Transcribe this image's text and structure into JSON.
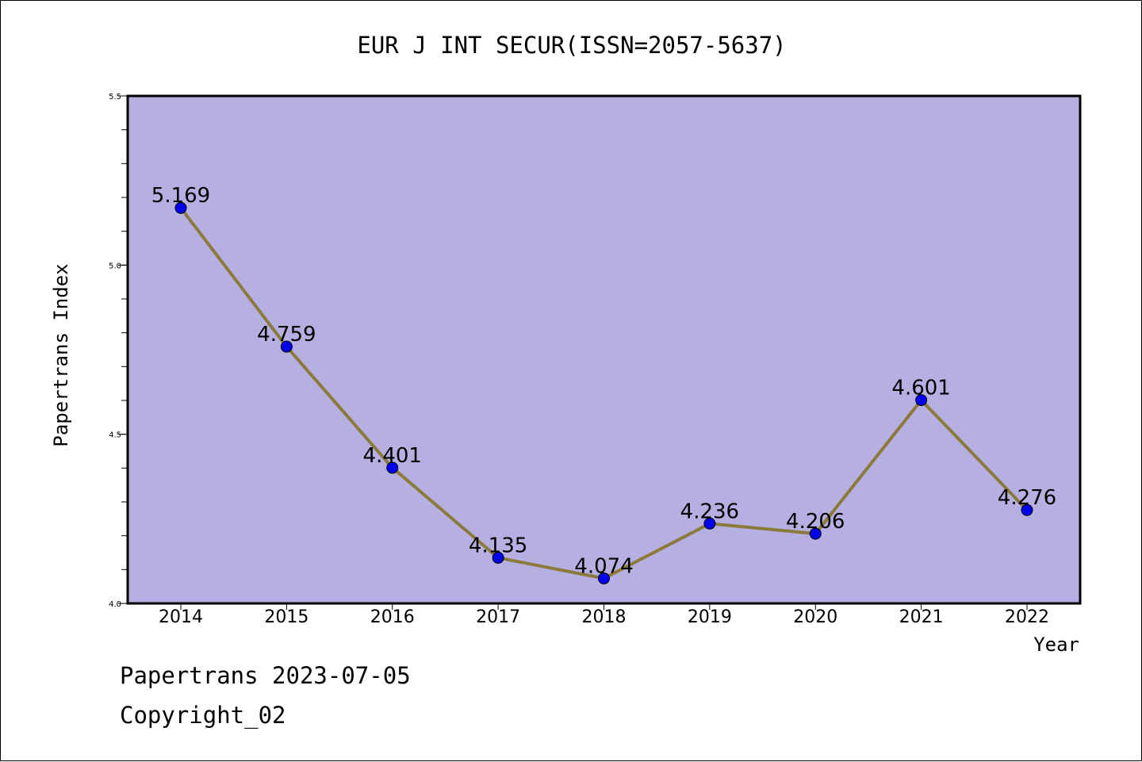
{
  "chart_data": {
    "type": "line",
    "title": "EUR J INT SECUR(ISSN=2057-5637)",
    "xlabel": "Year",
    "ylabel": "Papertrans Index",
    "categories": [
      "2014",
      "2015",
      "2016",
      "2017",
      "2018",
      "2019",
      "2020",
      "2021",
      "2022"
    ],
    "series": [
      {
        "values": [
          5.169,
          4.759,
          4.401,
          4.135,
          4.074,
          4.236,
          4.206,
          4.601,
          4.276
        ],
        "labels": [
          "5.169",
          "4.759",
          "4.401",
          "4.135",
          "4.074",
          "4.236",
          "4.206",
          "4.601",
          "4.276"
        ],
        "line_color": "#8b7a3a",
        "marker_color": "#0000ee"
      }
    ],
    "ylim": [
      4.0,
      5.5
    ],
    "yticks": [
      "4.0",
      "4.5",
      "5.0",
      "5.5"
    ],
    "ytick_values": [
      4.0,
      4.5,
      5.0,
      5.5
    ],
    "plot_background": "#b5afe2",
    "grid": false,
    "legend": "none"
  },
  "footer": {
    "line1": "Papertrans 2023-07-05",
    "line2": "Copyright_02"
  }
}
